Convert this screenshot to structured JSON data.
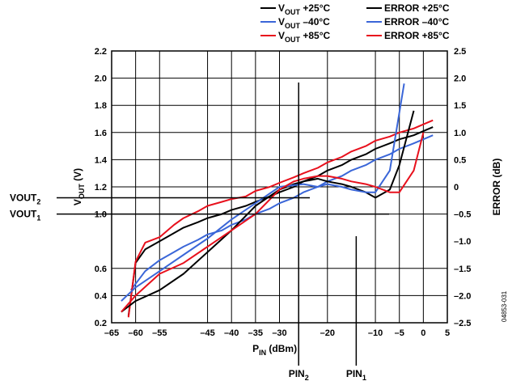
{
  "chart_data": {
    "type": "line",
    "xlabel": {
      "main": "P",
      "sub": "IN",
      "unit": "(dBm)"
    },
    "ylabel": {
      "main": "V",
      "sub": "OUT",
      "unit": "(V)"
    },
    "y2label": "ERROR (dB)",
    "xlim": [
      -65,
      5
    ],
    "ylim": [
      0.2,
      2.2
    ],
    "y2lim": [
      -2.5,
      2.5
    ],
    "grid": true,
    "legend_position": "top-right",
    "x_ticks": [
      {
        "value": -65,
        "label": "–65"
      },
      {
        "value": -60,
        "label": "–60"
      },
      {
        "value": -55,
        "label": "–55"
      },
      {
        "value": -45,
        "label": "–45"
      },
      {
        "value": -40,
        "label": "–40"
      },
      {
        "value": -35,
        "label": "–35"
      },
      {
        "value": -30,
        "label": "–30"
      },
      {
        "value": -20,
        "label": "–20"
      },
      {
        "value": -10,
        "label": "–10"
      },
      {
        "value": -5,
        "label": "–5"
      },
      {
        "value": 0,
        "label": "0"
      },
      {
        "value": 5,
        "label": "5"
      }
    ],
    "y_ticks": [
      {
        "value": 0.2,
        "label": "0.2"
      },
      {
        "value": 0.4,
        "label": "0.4"
      },
      {
        "value": 0.6,
        "label": "0.6"
      },
      {
        "value": 1.0,
        "label": "1.0"
      },
      {
        "value": 1.2,
        "label": "1.2"
      },
      {
        "value": 1.4,
        "label": "1.4"
      },
      {
        "value": 1.6,
        "label": "1.6"
      },
      {
        "value": 1.8,
        "label": "1.8"
      },
      {
        "value": 2.0,
        "label": "2.0"
      },
      {
        "value": 2.2,
        "label": "2.2"
      }
    ],
    "y2_ticks": [
      {
        "value": 2.5,
        "label": "2.5"
      },
      {
        "value": 2.0,
        "label": "2.0"
      },
      {
        "value": 1.5,
        "label": "1.5"
      },
      {
        "value": 1.0,
        "label": "1.0"
      },
      {
        "value": 0.5,
        "label": "0.5"
      },
      {
        "value": 0,
        "label": "0"
      },
      {
        "value": -0.5,
        "label": "–0.5"
      },
      {
        "value": -1.0,
        "label": "–1.0"
      },
      {
        "value": -1.5,
        "label": "–1.5"
      },
      {
        "value": -2.0,
        "label": "–2.0"
      },
      {
        "value": -2.5,
        "label": "–2.5"
      }
    ],
    "series": [
      {
        "legend_main": "V",
        "legend_sub": "OUT",
        "legend_rest": " +25°C",
        "color": "#000000",
        "axis": "left",
        "x": [
          -61.5,
          -60,
          -58,
          -55,
          -52,
          -50,
          -47,
          -45,
          -42,
          -40,
          -37,
          -35,
          -32,
          -30,
          -27,
          -25,
          -22,
          -20,
          -17,
          -15,
          -12,
          -10,
          -7,
          -5,
          -2,
          0,
          2
        ],
        "y": [
          0.25,
          0.64,
          0.74,
          0.8,
          0.86,
          0.9,
          0.94,
          0.97,
          1.0,
          1.03,
          1.06,
          1.09,
          1.13,
          1.16,
          1.2,
          1.24,
          1.28,
          1.32,
          1.36,
          1.4,
          1.44,
          1.48,
          1.52,
          1.55,
          1.58,
          1.61,
          1.64
        ]
      },
      {
        "legend_main": "V",
        "legend_sub": "OUT",
        "legend_rest": " –40°C",
        "color": "#3a66d8",
        "axis": "left",
        "x": [
          -61,
          -58,
          -55,
          -52,
          -50,
          -47,
          -45,
          -42,
          -40,
          -37,
          -35,
          -32,
          -30,
          -27,
          -25,
          -22,
          -20,
          -17,
          -15,
          -12,
          -10,
          -7,
          -5,
          -2,
          0,
          2
        ],
        "y": [
          0.44,
          0.58,
          0.66,
          0.72,
          0.76,
          0.81,
          0.85,
          0.88,
          0.92,
          0.96,
          1.0,
          1.04,
          1.08,
          1.12,
          1.16,
          1.2,
          1.24,
          1.28,
          1.32,
          1.36,
          1.4,
          1.44,
          1.48,
          1.52,
          1.55,
          1.58
        ]
      },
      {
        "legend_main": "V",
        "legend_sub": "OUT",
        "legend_rest": " +85°C",
        "color": "#e8101c",
        "axis": "left",
        "x": [
          -61.5,
          -60,
          -58,
          -55,
          -52,
          -50,
          -47,
          -45,
          -42,
          -40,
          -37,
          -35,
          -32,
          -30,
          -27,
          -25,
          -22,
          -20,
          -17,
          -15,
          -12,
          -10,
          -7,
          -5,
          -2,
          0,
          2
        ],
        "y": [
          0.24,
          0.65,
          0.79,
          0.83,
          0.92,
          0.97,
          1.02,
          1.06,
          1.09,
          1.11,
          1.13,
          1.17,
          1.2,
          1.23,
          1.27,
          1.3,
          1.34,
          1.38,
          1.42,
          1.46,
          1.5,
          1.54,
          1.57,
          1.6,
          1.63,
          1.66,
          1.69
        ]
      },
      {
        "legend_main": "ERROR +25°C",
        "legend_sub": "",
        "legend_rest": "",
        "color": "#000000",
        "axis": "right",
        "x": [
          -63,
          -60,
          -55,
          -50,
          -45,
          -40,
          -35,
          -30,
          -27,
          -25,
          -22,
          -20,
          -17,
          -15,
          -12,
          -10,
          -7,
          -5,
          -2
        ],
        "y": [
          -2.3,
          -2.1,
          -1.9,
          -1.6,
          -1.2,
          -0.8,
          -0.35,
          -0.05,
          0.05,
          0.1,
          0.15,
          0.1,
          0.05,
          0.0,
          -0.1,
          -0.2,
          -0.05,
          0.4,
          1.4
        ]
      },
      {
        "legend_main": "ERROR –40°C",
        "legend_sub": "",
        "legend_rest": "",
        "color": "#3a66d8",
        "axis": "right",
        "x": [
          -63,
          -60,
          -55,
          -50,
          -45,
          -40,
          -35,
          -30,
          -25,
          -22,
          -20,
          -17,
          -15,
          -12,
          -10,
          -7,
          -4
        ],
        "y": [
          -2.1,
          -1.85,
          -1.55,
          -1.25,
          -0.95,
          -0.6,
          -0.3,
          0.0,
          0.05,
          0.0,
          0.05,
          0.0,
          -0.05,
          -0.1,
          -0.1,
          0.3,
          1.9
        ]
      },
      {
        "legend_main": "ERROR +85°C",
        "legend_sub": "",
        "legend_rest": "",
        "color": "#e8101c",
        "axis": "right",
        "x": [
          -63,
          -60,
          -55,
          -50,
          -45,
          -40,
          -35,
          -30,
          -27,
          -25,
          -22,
          -20,
          -17,
          -15,
          -12,
          -10,
          -7,
          -5,
          -2,
          0
        ],
        "y": [
          -2.3,
          -2.0,
          -1.6,
          -1.4,
          -1.1,
          -0.8,
          -0.5,
          -0.05,
          0.1,
          0.15,
          0.2,
          0.2,
          0.15,
          0.1,
          0.05,
          0.0,
          -0.1,
          -0.1,
          0.3,
          1.0
        ]
      }
    ],
    "reference_lines": [
      {
        "label": "VOUT",
        "label_sub": "2",
        "y": 1.12
      },
      {
        "label": "VOUT",
        "label_sub": "1",
        "y": 1.0
      },
      {
        "label": "PIN",
        "label_sub": "2",
        "x": -26
      },
      {
        "label": "PIN",
        "label_sub": "1",
        "x": -14
      }
    ],
    "figure_id": "04853-031"
  }
}
